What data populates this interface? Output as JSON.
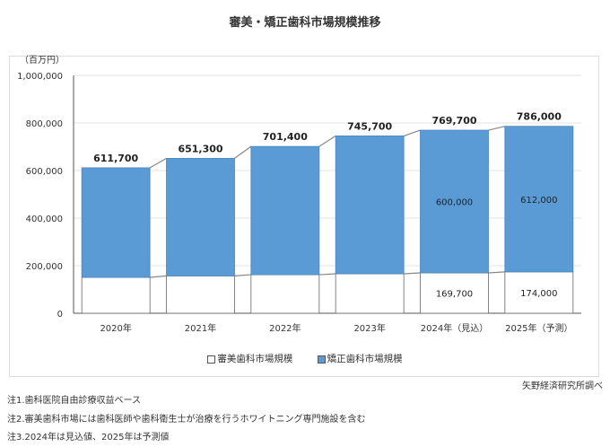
{
  "chart_data": {
    "type": "bar",
    "stacked": true,
    "title": "審美・矯正歯科市場規模推移",
    "ylabel": "（百万円）",
    "xlabel": "",
    "ylim": [
      0,
      1000000
    ],
    "yticks": [
      "0",
      "200,000",
      "400,000",
      "600,000",
      "800,000",
      "1,000,000"
    ],
    "ytick_values": [
      0,
      200000,
      400000,
      600000,
      800000,
      1000000
    ],
    "categories": [
      "2020年",
      "2021年",
      "2022年",
      "2023年",
      "2024年（見込）",
      "2025年（予測）"
    ],
    "series": [
      {
        "name": "審美歯科市場規模",
        "color": "#ffffff",
        "values": [
          151000,
          157000,
          162000,
          166000,
          169700,
          174000
        ],
        "labels": [
          "",
          "",
          "",
          "",
          "169,700",
          "174,000"
        ]
      },
      {
        "name": "矯正歯科市場規模",
        "color": "#5b9bd5",
        "values": [
          460700,
          494300,
          539400,
          579700,
          600000,
          612000
        ],
        "labels": [
          "",
          "",
          "",
          "",
          "600,000",
          "612,000"
        ]
      }
    ],
    "totals": [
      611700,
      651300,
      701400,
      745700,
      769700,
      786000
    ],
    "total_labels": [
      "611,700",
      "651,300",
      "701,400",
      "745,700",
      "769,700",
      "786,000"
    ],
    "legend": "bottom",
    "grid": true
  },
  "source": "矢野経済研究所調べ",
  "notes": [
    "注1.歯科医院自由診療収益ベース",
    "注2.審美歯科市場には歯科医師や歯科衛生士が治療を行うホワイトニング専門施設を含む",
    "注3.2024年は見込値、2025年は予測値"
  ]
}
